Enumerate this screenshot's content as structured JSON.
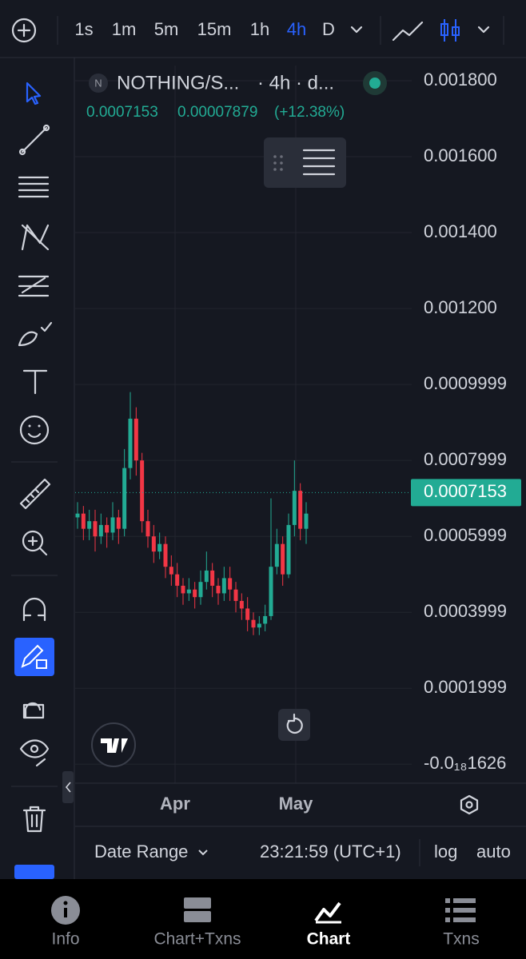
{
  "toolbar": {
    "intervals": [
      "1s",
      "1m",
      "5m",
      "15m",
      "1h",
      "4h",
      "D"
    ],
    "active_interval": "4h"
  },
  "legend": {
    "badge": "N",
    "symbol": "NOTHING/S...",
    "meta": "· 4h · d...",
    "last": "0.0007153",
    "change": "0.00007879",
    "change_pct": "(+12.38%)"
  },
  "chart_data": {
    "type": "candlestick",
    "up_color": "#22ab94",
    "down_color": "#f23645",
    "opens": [
      0.00065,
      0.00066,
      0.00062,
      0.00064,
      0.0006,
      0.00063,
      0.00061,
      0.00065,
      0.00062,
      0.00078,
      0.00091,
      0.0008,
      0.00064,
      0.0006,
      0.00056,
      0.00058,
      0.00052,
      0.0005,
      0.00047,
      0.00045,
      0.00046,
      0.00044,
      0.00048,
      0.00051,
      0.00047,
      0.00045,
      0.00049,
      0.00046,
      0.00043,
      0.00041,
      0.00038,
      0.00036,
      0.00037,
      0.00039,
      0.00052,
      0.00058,
      0.0005,
      0.00063,
      0.00072,
      0.00062
    ],
    "highs": [
      0.00069,
      0.00068,
      0.00067,
      0.00067,
      0.00066,
      0.00065,
      0.00069,
      0.00067,
      0.00083,
      0.00098,
      0.00094,
      0.00082,
      0.00067,
      0.00063,
      0.00061,
      0.0006,
      0.00055,
      0.00053,
      0.00049,
      0.00049,
      0.00048,
      0.00051,
      0.00056,
      0.00053,
      0.00049,
      0.00052,
      0.00052,
      0.00048,
      0.00045,
      0.00044,
      0.0004,
      0.00039,
      0.00042,
      0.0007,
      0.00062,
      0.0006,
      0.00066,
      0.0008,
      0.00074,
      0.00069
    ],
    "lows": [
      0.00062,
      0.00059,
      0.00059,
      0.00056,
      0.00058,
      0.00057,
      0.00059,
      0.00058,
      0.0006,
      0.00075,
      0.00076,
      0.00061,
      0.00057,
      0.00053,
      0.00054,
      0.00049,
      0.00047,
      0.00044,
      0.00042,
      0.00043,
      0.00041,
      0.00042,
      0.00046,
      0.00044,
      0.00042,
      0.00043,
      0.00043,
      0.0004,
      0.00038,
      0.00035,
      0.00034,
      0.00034,
      0.00035,
      0.00038,
      0.0005,
      0.00047,
      0.00049,
      0.0006,
      0.00059,
      0.00058
    ],
    "closes": [
      0.00066,
      0.00062,
      0.00064,
      0.0006,
      0.00063,
      0.00061,
      0.00065,
      0.00062,
      0.00078,
      0.00091,
      0.0008,
      0.00064,
      0.0006,
      0.00056,
      0.00058,
      0.00052,
      0.0005,
      0.00047,
      0.00045,
      0.00046,
      0.00044,
      0.00048,
      0.00051,
      0.00047,
      0.00045,
      0.00049,
      0.00046,
      0.00043,
      0.00041,
      0.00038,
      0.00036,
      0.00037,
      0.00039,
      0.00052,
      0.00058,
      0.0005,
      0.00063,
      0.00072,
      0.00062,
      0.00066
    ],
    "last_price": 0.0007153,
    "ylim": [
      -5e-05,
      0.00184
    ],
    "yticks": [
      {
        "value": 0.0018,
        "label": "0.001800"
      },
      {
        "value": 0.0016,
        "label": "0.001600"
      },
      {
        "value": 0.0014,
        "label": "0.001400"
      },
      {
        "value": 0.0012,
        "label": "0.001200"
      },
      0.0009999,
      0.0007999,
      0.0005999,
      0.0003999,
      0.0001999,
      {
        "value": -1.626e-19,
        "label": "-0.0₁₈1626"
      }
    ],
    "x_labels": [
      "Apr",
      "May"
    ]
  },
  "footer": {
    "date_range": "Date Range",
    "time": "23:21:59 (UTC+1)",
    "log": "log",
    "auto": "auto"
  },
  "nav": {
    "items": [
      "Info",
      "Chart+Txns",
      "Chart",
      "Txns"
    ],
    "active": "Chart"
  }
}
